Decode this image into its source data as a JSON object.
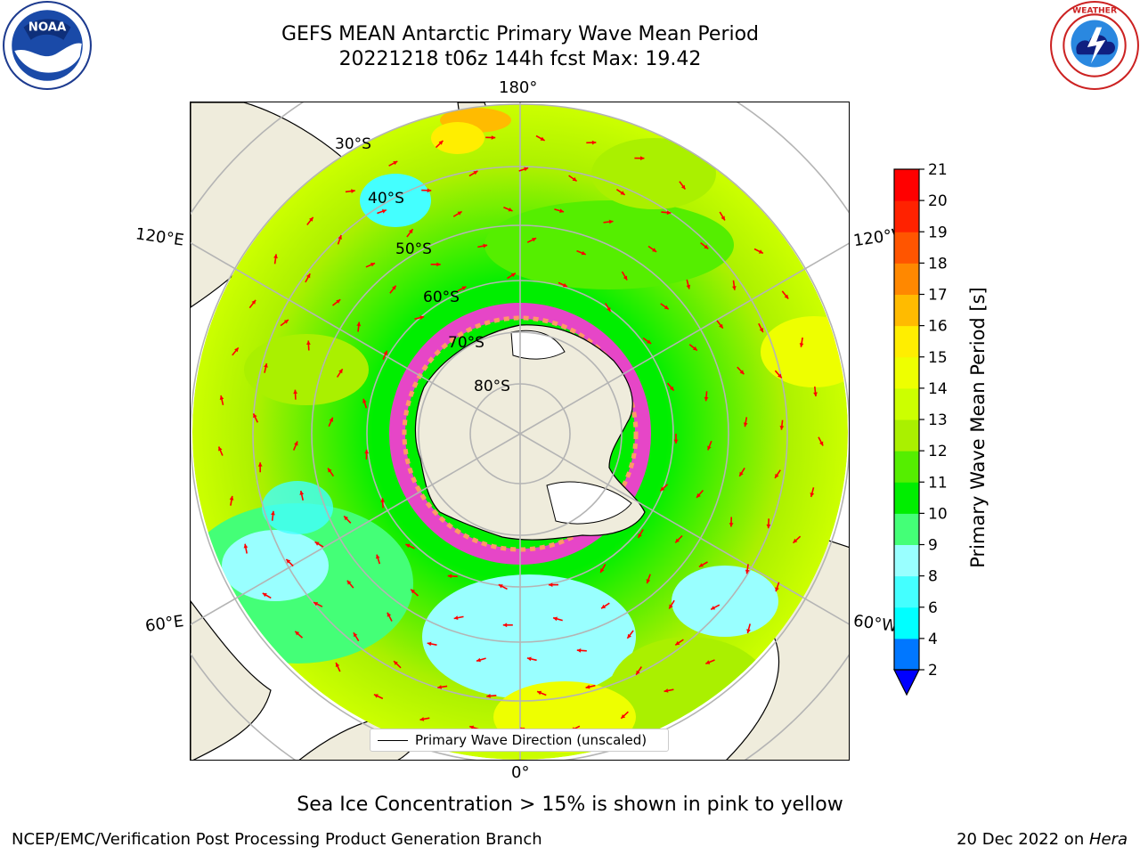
{
  "title_line1": "GEFS MEAN Antarctic Primary Wave Mean Period",
  "title_line2": "20221218 t06z 144h fcst   Max: 19.42",
  "logos": {
    "left": "noaa-logo",
    "right": "national-weather-service-logo"
  },
  "map": {
    "projection": "south-polar-stereographic",
    "longitude_labels": [
      "180°",
      "120°E",
      "120°W",
      "60°E",
      "60°W",
      "0°"
    ],
    "latitude_labels": [
      "30°S",
      "40°S",
      "50°S",
      "60°S",
      "70°S",
      "80°S"
    ],
    "arrow_color": "#ff0000",
    "land_color": "#efecdc",
    "grid_color": "#b4b4b4",
    "legend_label": "Primary Wave Direction (unscaled)"
  },
  "colorbar": {
    "label": "Primary Wave Mean Period [s]",
    "ticks": [
      "2",
      "4",
      "6",
      "8",
      "9",
      "10",
      "11",
      "12",
      "13",
      "14",
      "15",
      "16",
      "17",
      "18",
      "19",
      "20",
      "21"
    ],
    "colors": [
      "#0000ff",
      "#0077ff",
      "#00ffff",
      "#44ffff",
      "#99ffff",
      "#44ff77",
      "#00ee00",
      "#55ee00",
      "#aaf000",
      "#ccff00",
      "#eeff00",
      "#ffee00",
      "#ffbb00",
      "#ff8800",
      "#ff5500",
      "#ff2200",
      "#ff0000"
    ],
    "extend_min": true
  },
  "caption": "Sea Ice Concentration > 15% is shown in pink to yellow",
  "footer": {
    "left": "NCEP/EMC/Verification Post Processing Product Generation Branch",
    "right_date": "20 Dec 2022 on ",
    "right_host": "Hera"
  }
}
